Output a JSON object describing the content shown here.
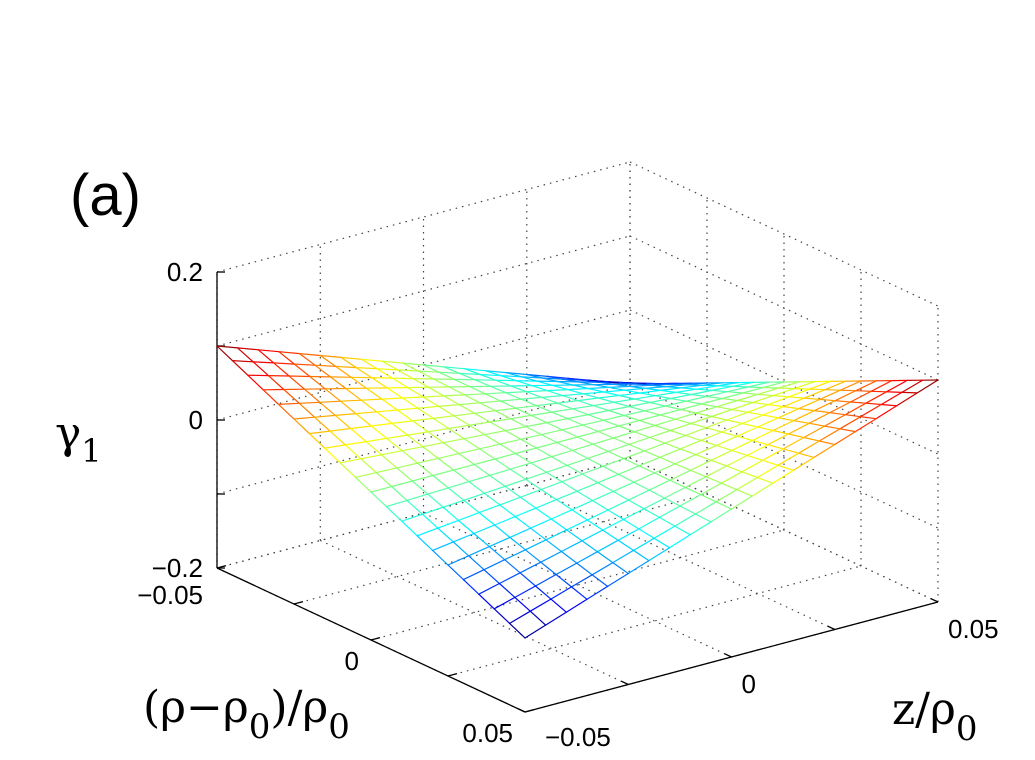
{
  "chart_data": {
    "type": "surface",
    "panel_label": "(a)",
    "xlabel": "(ρ−ρ0)/ρ0",
    "ylabel": "z/ρ0",
    "zlabel": "γ1",
    "xlim": [
      -0.05,
      0.05
    ],
    "ylim": [
      -0.05,
      0.05
    ],
    "zlim": [
      -0.2,
      0.2
    ],
    "x_ticks": [
      "−0.05",
      "0",
      "0.05"
    ],
    "y_ticks": [
      "−0.05",
      "0",
      "0.05"
    ],
    "z_ticks": [
      "−0.2",
      "0",
      "0.2"
    ],
    "function": "z = 40 * x * y",
    "grid_points": 21,
    "colormap": "jet",
    "grid": "dotted",
    "corner_values": [
      {
        "x": -0.05,
        "y": -0.05,
        "z": 0.1
      },
      {
        "x": 0.05,
        "y": 0.05,
        "z": 0.1
      },
      {
        "x": 0.05,
        "y": -0.05,
        "z": -0.1
      },
      {
        "x": -0.05,
        "y": 0.05,
        "z": -0.1
      }
    ]
  }
}
